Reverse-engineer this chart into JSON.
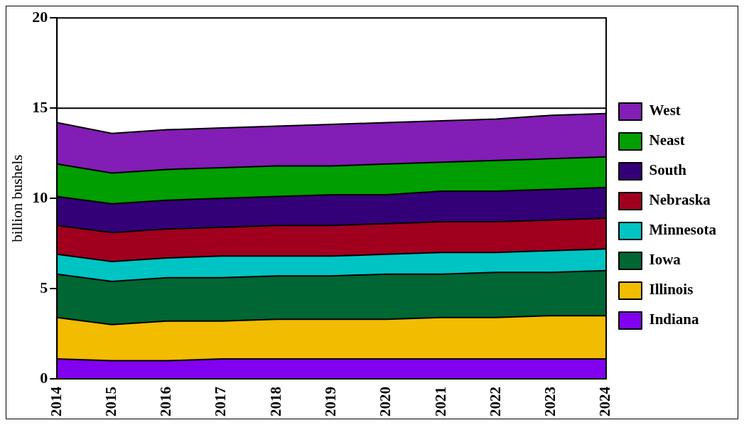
{
  "chart_data": {
    "type": "area",
    "stacked": true,
    "ylabel": "billion bushels",
    "categories": [
      "2014",
      "2015",
      "2016",
      "2017",
      "2018",
      "2019",
      "2020",
      "2021",
      "2022",
      "2023",
      "2024"
    ],
    "ylim": [
      0,
      20
    ],
    "yticks": [
      0,
      5,
      10,
      15,
      20
    ],
    "legend": "right",
    "grid": false,
    "ref_lines": [
      {
        "axis": "y",
        "value": 15,
        "color": "#000000"
      }
    ],
    "series": [
      {
        "name": "Indiana",
        "color": "#8000ef",
        "values": [
          1.1,
          1.0,
          1.0,
          1.1,
          1.1,
          1.1,
          1.1,
          1.1,
          1.1,
          1.1,
          1.1
        ]
      },
      {
        "name": "Illinois",
        "color": "#f2bc00",
        "values": [
          2.3,
          2.0,
          2.2,
          2.1,
          2.2,
          2.2,
          2.2,
          2.3,
          2.3,
          2.4,
          2.4
        ]
      },
      {
        "name": "Iowa",
        "color": "#006633",
        "values": [
          2.4,
          2.4,
          2.4,
          2.4,
          2.4,
          2.4,
          2.5,
          2.4,
          2.5,
          2.4,
          2.5
        ]
      },
      {
        "name": "Minnesota",
        "color": "#00c4c4",
        "values": [
          1.1,
          1.1,
          1.1,
          1.2,
          1.1,
          1.1,
          1.1,
          1.2,
          1.1,
          1.2,
          1.2
        ]
      },
      {
        "name": "Nebraska",
        "color": "#a0001e",
        "values": [
          1.6,
          1.6,
          1.6,
          1.6,
          1.7,
          1.7,
          1.7,
          1.7,
          1.7,
          1.7,
          1.7
        ]
      },
      {
        "name": "South",
        "color": "#330078",
        "values": [
          1.6,
          1.6,
          1.6,
          1.6,
          1.6,
          1.7,
          1.6,
          1.7,
          1.7,
          1.7,
          1.7
        ]
      },
      {
        "name": "Neast",
        "color": "#009e00",
        "values": [
          1.8,
          1.7,
          1.7,
          1.7,
          1.7,
          1.6,
          1.7,
          1.6,
          1.7,
          1.7,
          1.7
        ]
      },
      {
        "name": "West",
        "color": "#821db5",
        "values": [
          2.3,
          2.2,
          2.2,
          2.2,
          2.2,
          2.3,
          2.3,
          2.3,
          2.3,
          2.4,
          2.4
        ]
      }
    ]
  }
}
